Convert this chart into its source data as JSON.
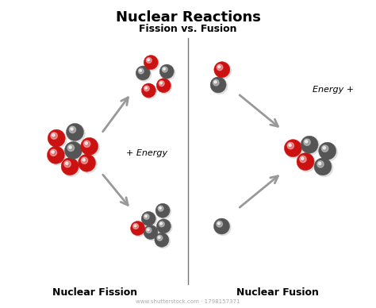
{
  "title": "Nuclear Reactions",
  "subtitle": "Fission vs. Fusion",
  "fission_label": "Nuclear Fission",
  "fusion_label": "Nuclear Fusion",
  "fission_energy_label": "+ Energy",
  "fusion_energy_label": "Energy +",
  "watermark": "www.shutterstock.com · 1798157371",
  "bg_color": "#ffffff",
  "red_color": "#cc1111",
  "dark_color": "#555555",
  "arrow_color": "#999999",
  "divider_color": "#777777",
  "title_fontsize": 13,
  "subtitle_fontsize": 9,
  "label_fontsize": 9,
  "energy_fontsize": 8
}
